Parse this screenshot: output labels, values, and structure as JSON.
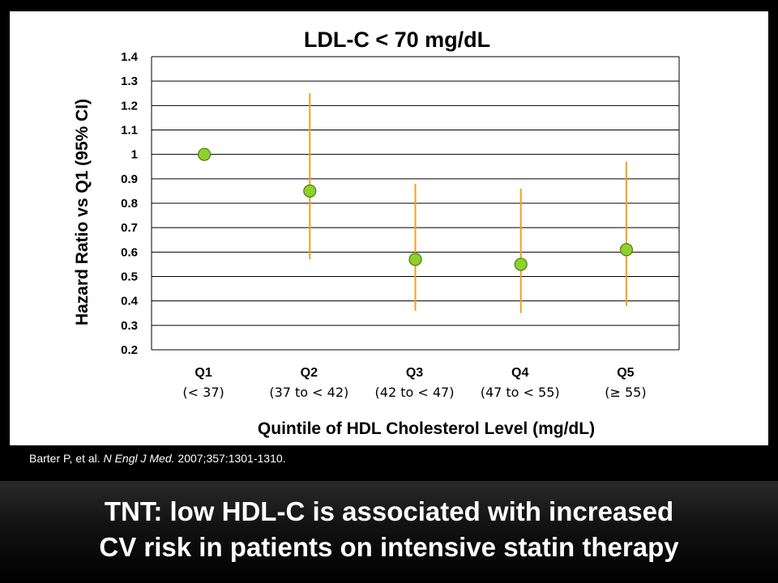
{
  "chart_data": {
    "type": "scatter",
    "title": "LDL-C < 70 mg/dL",
    "ylabel": "Hazard Ratio vs Q1 (95% CI)",
    "xlabel": "Quintile of HDL Cholesterol Level (mg/dL)",
    "ylim": [
      0.2,
      1.4
    ],
    "yticks": [
      "1.4",
      "1.3",
      "1.2",
      "1.1",
      "1",
      "0.9",
      "0.8",
      "0.7",
      "0.6",
      "0.5",
      "0.4",
      "0.3",
      "0.2"
    ],
    "grid": true,
    "categories": [
      {
        "label": "Q1",
        "range": "(< 37)"
      },
      {
        "label": "Q2",
        "range": "(37 to < 42)"
      },
      {
        "label": "Q3",
        "range": "(42 to < 47)"
      },
      {
        "label": "Q4",
        "range": "(47 to < 55)"
      },
      {
        "label": "Q5",
        "range": "(≥ 55)"
      }
    ],
    "points": [
      {
        "hr": 1.0,
        "ci_low": null,
        "ci_high": null
      },
      {
        "hr": 0.85,
        "ci_low": 0.57,
        "ci_high": 1.25
      },
      {
        "hr": 0.57,
        "ci_low": 0.36,
        "ci_high": 0.88
      },
      {
        "hr": 0.55,
        "ci_low": 0.35,
        "ci_high": 0.86
      },
      {
        "hr": 0.61,
        "ci_low": 0.38,
        "ci_high": 0.97
      }
    ],
    "colors": {
      "marker_fill": "#8fd12a",
      "marker_stroke": "#4a7a10",
      "error_bar": "#f0a020",
      "grid": "#000000"
    }
  },
  "citation": {
    "authors": "Barter P, et al.",
    "journal": "N Engl J Med.",
    "details": "2007;357:1301-1310."
  },
  "headline": {
    "line1": "TNT: low HDL-C is associated with increased",
    "line2": "CV risk in patients on intensive statin therapy"
  }
}
